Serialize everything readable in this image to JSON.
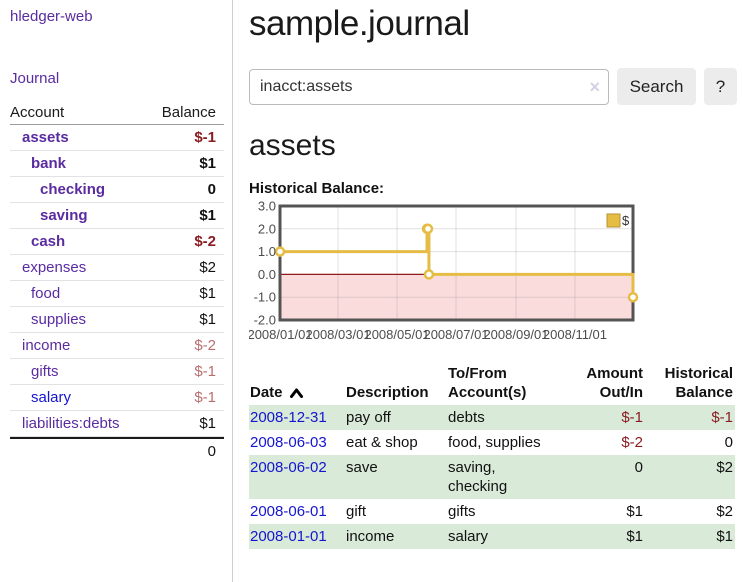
{
  "app": {
    "brand": "hledger-web"
  },
  "sidebar": {
    "nav": {
      "journal_label": "Journal"
    },
    "accounts_header": {
      "account": "Account",
      "balance": "Balance"
    },
    "accounts": [
      {
        "name": "assets",
        "balance": "$-1"
      },
      {
        "name": "bank",
        "balance": "$1"
      },
      {
        "name": "checking",
        "balance": "0"
      },
      {
        "name": "saving",
        "balance": "$1"
      },
      {
        "name": "cash",
        "balance": "$-2"
      },
      {
        "name": "expenses",
        "balance": "$2"
      },
      {
        "name": "food",
        "balance": "$1"
      },
      {
        "name": "supplies",
        "balance": "$1"
      },
      {
        "name": "income",
        "balance": "$-2"
      },
      {
        "name": "gifts",
        "balance": "$-1"
      },
      {
        "name": "salary",
        "balance": "$-1"
      },
      {
        "name": "liabilities:debts",
        "balance": "$1"
      }
    ],
    "total": "0"
  },
  "main": {
    "title": "sample.journal",
    "search": {
      "value": "inacct:assets",
      "clear_icon": "×",
      "search_button": "Search",
      "help_button": "?"
    },
    "account_heading": "assets",
    "chart_label": "Historical Balance:"
  },
  "chart_data": {
    "type": "line",
    "title": "Historical Balance:",
    "series": [
      {
        "name": "$",
        "step": true,
        "color": "#e5bd45",
        "marker": "open-circle",
        "points": [
          [
            "2008-01-01",
            1
          ],
          [
            "2008-06-01",
            2
          ],
          [
            "2008-06-02",
            2
          ],
          [
            "2008-06-03",
            0
          ],
          [
            "2008-12-31",
            -1
          ]
        ]
      }
    ],
    "x_ticks": [
      "2008/01/01",
      "2008/03/01",
      "2008/05/01",
      "2008/07/01",
      "2008/09/01",
      "2008/11/01"
    ],
    "y_ticks": [
      "3.0",
      "2.0",
      "1.0",
      "0.0",
      "-1.0",
      "-2.0"
    ],
    "xlim": [
      "2008-01-01",
      "2008-12-31"
    ],
    "ylim": [
      -2,
      3
    ],
    "grid": true,
    "legend": {
      "label": "$",
      "position": "top-right"
    },
    "negative_fill": "#fbdcdc",
    "zero_line_color": "#8e1a1a"
  },
  "register": {
    "columns": [
      "Date",
      "Description",
      "To/From Account(s)",
      "Amount Out/In",
      "Historical Balance"
    ],
    "sort_icon": "chevron-up",
    "rows": [
      {
        "date": "2008-12-31",
        "description": "pay off",
        "accounts": "debts",
        "amount": "$-1",
        "balance": "$-1"
      },
      {
        "date": "2008-06-03",
        "description": "eat & shop",
        "accounts": "food, supplies",
        "amount": "$-2",
        "balance": "0"
      },
      {
        "date": "2008-06-02",
        "description": "save",
        "accounts": "saving, checking",
        "amount": "0",
        "balance": "$2"
      },
      {
        "date": "2008-06-01",
        "description": "gift",
        "accounts": "gifts",
        "amount": "$1",
        "balance": "$2"
      },
      {
        "date": "2008-01-01",
        "description": "income",
        "accounts": "salary",
        "amount": "$1",
        "balance": "$1"
      }
    ]
  }
}
